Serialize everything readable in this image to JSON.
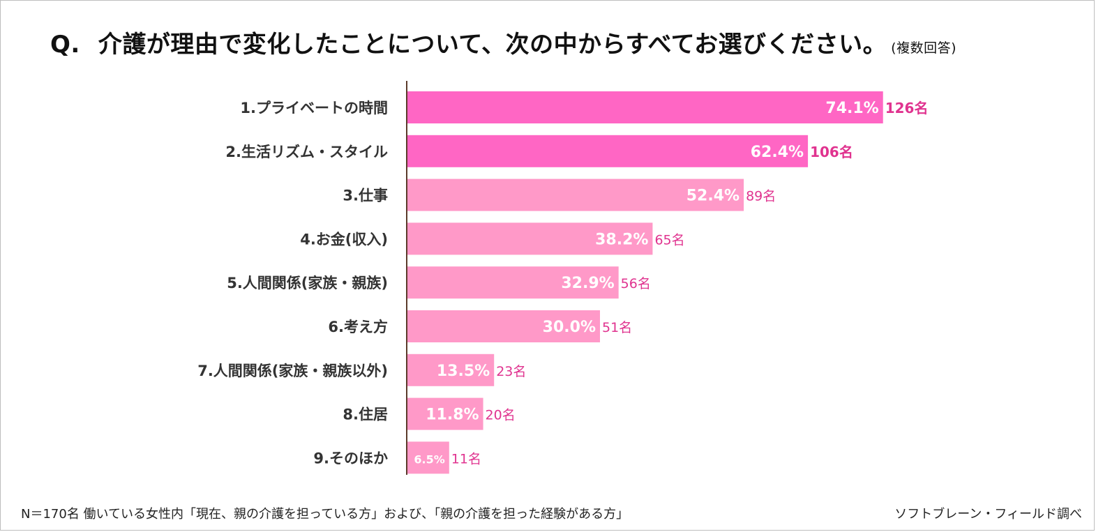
{
  "title": {
    "q_label": "Q.",
    "main": "介護が理由で変化したことについて、次の中からすべてお選びください。",
    "sub": "(複数回答)"
  },
  "footnote": "N＝170名 働いている女性内「現在、親の介護を担っている方」および、「親の介護を担った経験がある方」",
  "source": "ソフトブレーン・フィールド調べ",
  "colors": {
    "bar_top": "#ff66c4",
    "bar_rest": "#ff99c8",
    "count_text": "#e0338f",
    "axis": "#5a3a2a",
    "label_text": "#333333",
    "pct_text": "#ffffff"
  },
  "chart_data": {
    "type": "bar",
    "orientation": "horizontal",
    "unit": "%",
    "xlim": [
      0,
      100
    ],
    "categories": [
      "1.プライベートの時間",
      "2.生活リズム・スタイル",
      "3.仕事",
      "4.お金(収入)",
      "5.人間関係(家族・親族)",
      "6.考え方",
      "7.人間関係(家族・親族以外)",
      "8.住居",
      "9.そのほか"
    ],
    "values": [
      74.1,
      62.4,
      52.4,
      38.2,
      32.9,
      30.0,
      13.5,
      11.8,
      6.5
    ],
    "value_labels": [
      "74.1%",
      "62.4%",
      "52.4%",
      "38.2%",
      "32.9%",
      "30.0%",
      "13.5%",
      "11.8%",
      "6.5%"
    ],
    "count_labels": [
      "126名",
      "106名",
      "89名",
      "65名",
      "56名",
      "51名",
      "23名",
      "20名",
      "11名"
    ],
    "highlighted": [
      true,
      true,
      false,
      false,
      false,
      false,
      false,
      false,
      false
    ]
  }
}
